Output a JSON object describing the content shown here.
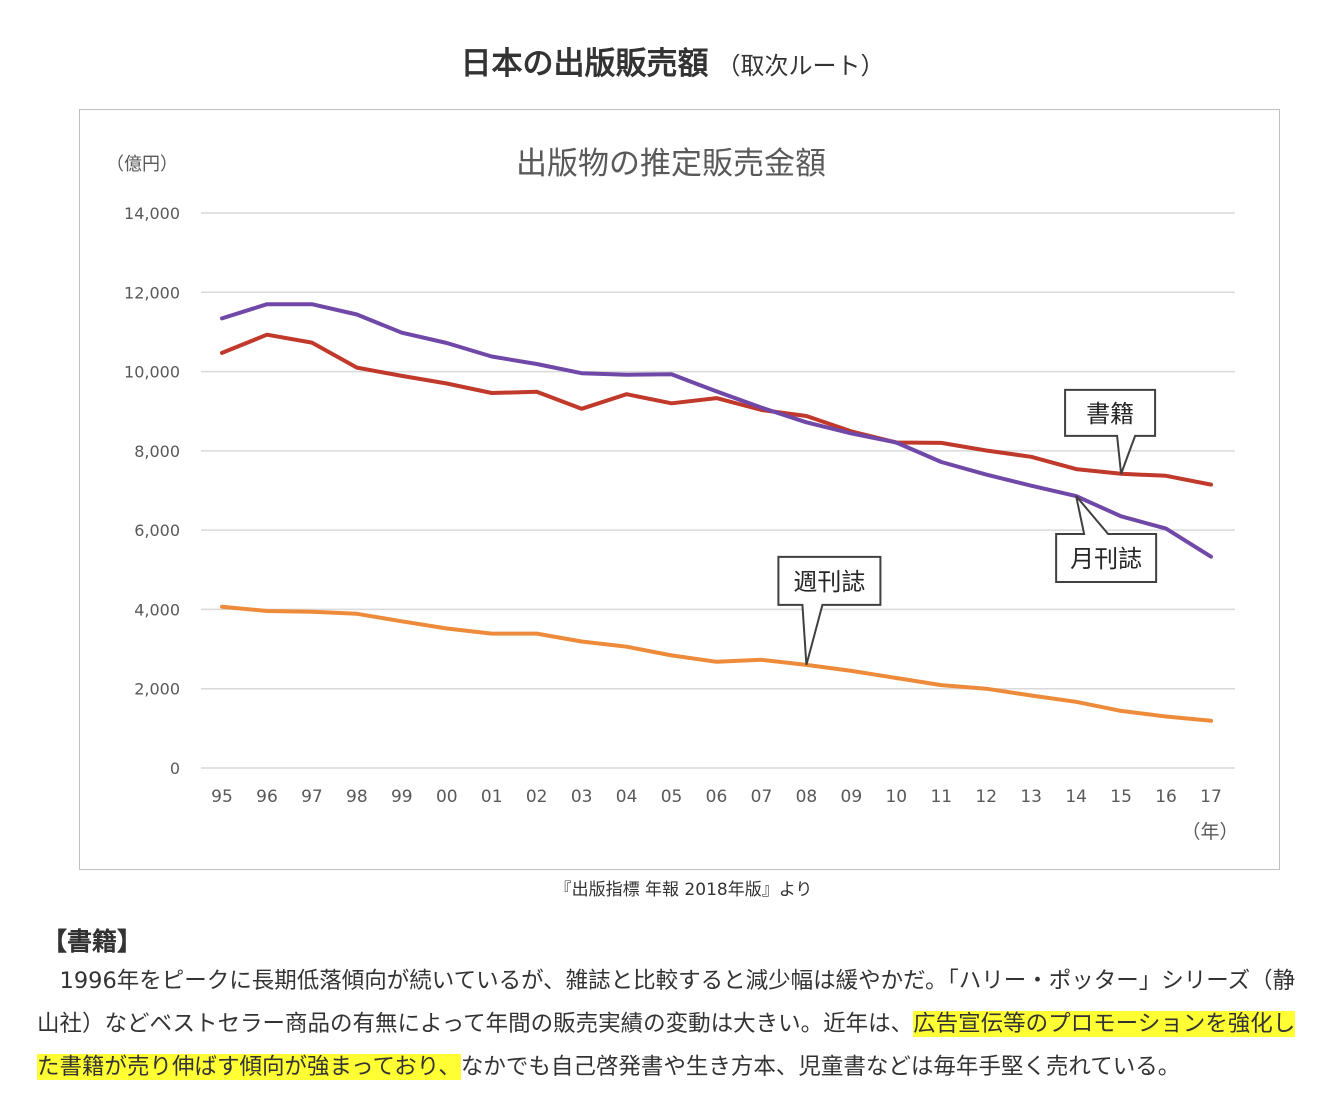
{
  "page": {
    "title": "日本の出版販売額",
    "title_sub": "（取次ルート）",
    "source": "『出版指標 年報 2018年版』より",
    "section_heading": "【書籍】",
    "paragraph": {
      "part1": "1996年をピークに長期低落傾向が続いているが、雑誌と比較すると減少幅は緩やかだ。「ハリー・ポッター」シリーズ（静山社）などベストセラー商品の有無によって年間の販売実績の変動は大きい。近年は、",
      "highlight": "広告宣伝等のプロモーションを強化した書籍が売り伸ばす傾向が強まっており、",
      "part2": "なかでも自己啓発書や生き方本、児童書などは毎年手堅く売れている。"
    },
    "highlight_color": "#ffff33"
  },
  "chart_data": {
    "type": "line",
    "title": "出版物の推定販売金額",
    "ylabel": "（億円）",
    "xlabel": "（年）",
    "ylim": [
      0,
      14000
    ],
    "yticks": [
      0,
      2000,
      4000,
      6000,
      8000,
      10000,
      12000,
      14000
    ],
    "ytick_labels": [
      "0",
      "2,000",
      "4,000",
      "6,000",
      "8,000",
      "10,000",
      "12,000",
      "14,000"
    ],
    "grid": true,
    "legend": "callouts",
    "categories": [
      "95",
      "96",
      "97",
      "98",
      "99",
      "00",
      "01",
      "02",
      "03",
      "04",
      "05",
      "06",
      "07",
      "08",
      "09",
      "10",
      "11",
      "12",
      "13",
      "14",
      "15",
      "16",
      "17"
    ],
    "series": [
      {
        "name": "書籍",
        "color": "#c0392b",
        "values": [
          10470,
          10930,
          10730,
          10100,
          9890,
          9700,
          9460,
          9490,
          9060,
          9430,
          9200,
          9330,
          9030,
          8880,
          8490,
          8210,
          8200,
          8010,
          7850,
          7540,
          7420,
          7370,
          7150
        ],
        "callout_at": "15",
        "callout_position": "above"
      },
      {
        "name": "月刊誌",
        "color": "#7048a8",
        "values": [
          11340,
          11700,
          11700,
          11440,
          10980,
          10720,
          10380,
          10190,
          9960,
          9920,
          9930,
          9500,
          9090,
          8720,
          8440,
          8210,
          7720,
          7400,
          7120,
          6860,
          6350,
          6040,
          5330
        ],
        "callout_at": "14",
        "callout_position": "below"
      },
      {
        "name": "週刊誌",
        "color": "#ed8b3a",
        "values": [
          4070,
          3960,
          3940,
          3890,
          3700,
          3520,
          3390,
          3390,
          3190,
          3060,
          2840,
          2680,
          2730,
          2600,
          2450,
          2270,
          2090,
          2000,
          1830,
          1670,
          1440,
          1300,
          1190
        ],
        "callout_at": "08",
        "callout_position": "above"
      }
    ]
  }
}
